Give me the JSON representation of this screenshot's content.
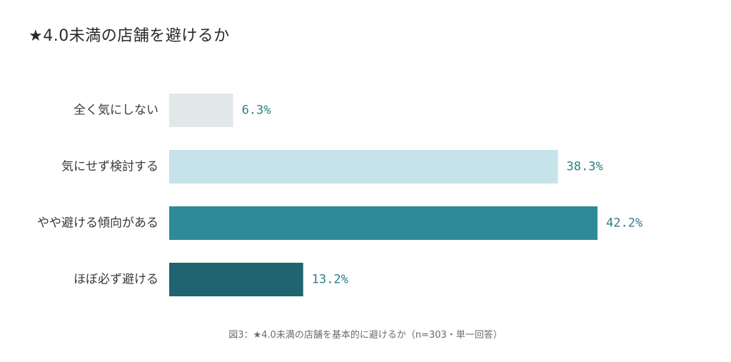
{
  "title": "★4.0未満の店舗を避けるか",
  "caption": "図3：★4.0未満の店舗を基本的に避けるか（n=303・単一回答）",
  "chart_data": {
    "type": "bar",
    "orientation": "horizontal",
    "categories": [
      "全く気にしない",
      "気にせず検討する",
      "やや避ける傾向がある",
      "ほぼ必ず避ける"
    ],
    "values": [
      6.3,
      38.3,
      42.2,
      13.2
    ],
    "value_labels": [
      "6.3%",
      "38.3%",
      "42.2%",
      "13.2%"
    ],
    "colors": [
      "#e2e7ea",
      "#c5e3e8",
      "#2e8a97",
      "#1f6470"
    ],
    "value_color": "#2f7f86",
    "xlim": [
      0,
      42.2
    ],
    "grid": false,
    "legend": "none"
  }
}
